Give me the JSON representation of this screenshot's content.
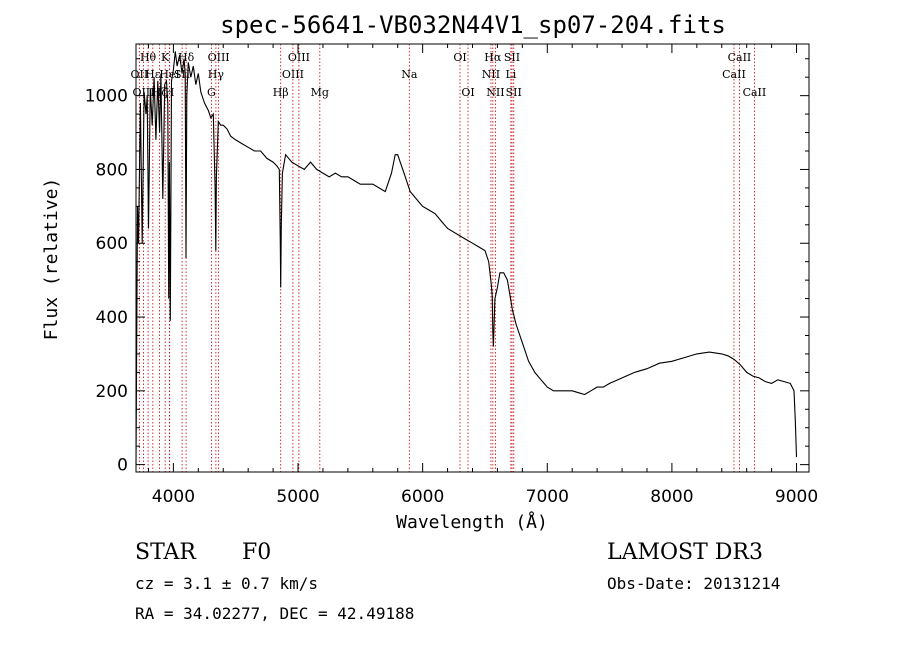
{
  "chart_data": {
    "type": "line",
    "title": "spec-56641-VB032N44V1_sp07-204.fits",
    "xlabel": "Wavelength (Å)",
    "ylabel": "Flux (relative)",
    "xlim": [
      3700,
      9100
    ],
    "ylim": [
      -20,
      1140
    ],
    "xticks": [
      4000,
      5000,
      6000,
      7000,
      8000,
      9000
    ],
    "yticks": [
      0,
      200,
      400,
      600,
      800,
      1000
    ],
    "series": [
      {
        "name": "flux",
        "x": [
          3700,
          3705,
          3712,
          3720,
          3735,
          3750,
          3765,
          3780,
          3790,
          3800,
          3815,
          3830,
          3845,
          3860,
          3875,
          3889,
          3900,
          3915,
          3930,
          3945,
          3955,
          3962,
          3968,
          3975,
          3985,
          4000,
          4015,
          4030,
          4050,
          4070,
          4085,
          4095,
          4101,
          4108,
          4120,
          4140,
          4160,
          4180,
          4200,
          4220,
          4250,
          4280,
          4300,
          4320,
          4335,
          4340,
          4345,
          4360,
          4380,
          4400,
          4430,
          4460,
          4500,
          4550,
          4600,
          4650,
          4700,
          4750,
          4800,
          4830,
          4850,
          4858,
          4861,
          4866,
          4875,
          4900,
          4950,
          5000,
          5050,
          5100,
          5150,
          5200,
          5250,
          5300,
          5350,
          5400,
          5450,
          5500,
          5550,
          5600,
          5650,
          5700,
          5750,
          5780,
          5800,
          5820,
          5850,
          5880,
          5900,
          5950,
          6000,
          6050,
          6100,
          6150,
          6200,
          6250,
          6300,
          6350,
          6400,
          6450,
          6500,
          6530,
          6550,
          6558,
          6563,
          6568,
          6580,
          6600,
          6620,
          6650,
          6680,
          6700,
          6720,
          6750,
          6800,
          6850,
          6900,
          6950,
          7000,
          7050,
          7100,
          7150,
          7200,
          7250,
          7300,
          7350,
          7400,
          7450,
          7500,
          7600,
          7700,
          7800,
          7900,
          8000,
          8100,
          8200,
          8300,
          8400,
          8450,
          8500,
          8550,
          8600,
          8650,
          8700,
          8750,
          8800,
          8850,
          8900,
          8950,
          8980,
          8990,
          9000
        ],
        "y": [
          0,
          280,
          700,
          600,
          980,
          600,
          1010,
          950,
          1000,
          640,
          1020,
          920,
          1050,
          880,
          1040,
          900,
          1060,
          720,
          1030,
          1040,
          980,
          450,
          820,
          390,
          1040,
          1070,
          1120,
          1080,
          1110,
          1060,
          1100,
          1060,
          560,
          1000,
          1090,
          1050,
          1080,
          1030,
          1060,
          1010,
          980,
          960,
          940,
          950,
          750,
          580,
          780,
          930,
          920,
          920,
          910,
          890,
          880,
          870,
          860,
          850,
          850,
          830,
          820,
          810,
          800,
          600,
          480,
          650,
          790,
          840,
          820,
          810,
          800,
          820,
          800,
          790,
          780,
          790,
          780,
          780,
          770,
          760,
          760,
          760,
          750,
          740,
          790,
          840,
          840,
          820,
          790,
          760,
          740,
          720,
          700,
          690,
          680,
          660,
          640,
          630,
          620,
          610,
          600,
          590,
          580,
          550,
          490,
          460,
          360,
          320,
          450,
          480,
          520,
          520,
          500,
          460,
          420,
          380,
          330,
          280,
          250,
          230,
          210,
          200,
          200,
          200,
          200,
          195,
          190,
          200,
          210,
          210,
          220,
          235,
          250,
          260,
          275,
          280,
          290,
          300,
          305,
          300,
          295,
          285,
          270,
          250,
          240,
          235,
          225,
          220,
          230,
          225,
          220,
          200,
          120,
          20
        ]
      }
    ],
    "spectral_lines": [
      {
        "label": "Hθ",
        "x": 3797,
        "row": 0
      },
      {
        "label": "OII",
        "x": 3727,
        "row": 1
      },
      {
        "label": "OIII",
        "x": 3760,
        "row": 2
      },
      {
        "label": "Hε",
        "x": 3835,
        "row": 1
      },
      {
        "label": "Hζ",
        "x": 3889,
        "row": 2
      },
      {
        "label": "K",
        "x": 3934,
        "row": 0
      },
      {
        "label": "H",
        "x": 3969,
        "row": 2
      },
      {
        "label": "HeI",
        "x": 3970,
        "row": 1
      },
      {
        "label": "Hδ",
        "x": 4102,
        "row": 0
      },
      {
        "label": "SII",
        "x": 4070,
        "row": 1
      },
      {
        "label": "OIII",
        "x": 4363,
        "row": 0
      },
      {
        "label": "Hγ",
        "x": 4341,
        "row": 1
      },
      {
        "label": "G",
        "x": 4305,
        "row": 2
      },
      {
        "label": "OIII",
        "x": 5007,
        "row": 0
      },
      {
        "label": "OIII",
        "x": 4959,
        "row": 1
      },
      {
        "label": "Hβ",
        "x": 4861,
        "row": 2
      },
      {
        "label": "Mg",
        "x": 5175,
        "row": 2
      },
      {
        "label": "Na",
        "x": 5893,
        "row": 1
      },
      {
        "label": "OI",
        "x": 6300,
        "row": 0
      },
      {
        "label": "OI",
        "x": 6364,
        "row": 2
      },
      {
        "label": "Hα",
        "x": 6563,
        "row": 0
      },
      {
        "label": "SII",
        "x": 6717,
        "row": 0
      },
      {
        "label": "NII",
        "x": 6548,
        "row": 1
      },
      {
        "label": "Li",
        "x": 6708,
        "row": 1
      },
      {
        "label": "NII",
        "x": 6584,
        "row": 2
      },
      {
        "label": "SII",
        "x": 6731,
        "row": 2
      },
      {
        "label": "CaII",
        "x": 8542,
        "row": 0
      },
      {
        "label": "CaII",
        "x": 8498,
        "row": 1
      },
      {
        "label": "CaII",
        "x": 8662,
        "row": 2
      }
    ]
  },
  "info": {
    "object_type": "STAR",
    "subclass": "F0",
    "survey": "LAMOST DR3",
    "cz": "cz = 3.1 ± 0.7 km/s",
    "obs_date": "Obs-Date: 20131214",
    "coords": "RA =  34.02277, DEC =  42.49188"
  },
  "colors": {
    "line": "#000000",
    "marker": "#cc0000"
  }
}
